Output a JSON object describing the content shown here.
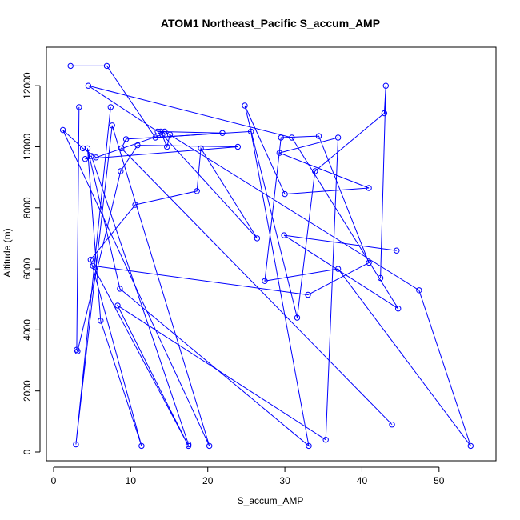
{
  "chart_data": {
    "type": "line",
    "title": "ATOM1 Northeast_Pacific S_accum_AMP",
    "xlabel": "S_accum_AMP",
    "ylabel": "Altitude (m)",
    "xlim": [
      0,
      55
    ],
    "ylim": [
      0,
      13000
    ],
    "xticks": [
      0,
      10,
      20,
      30,
      40,
      50
    ],
    "yticks": [
      0,
      2000,
      4000,
      6000,
      8000,
      10000,
      12000
    ],
    "grid": false,
    "legend": "none",
    "color": "#0000ff",
    "marker": "open-circle",
    "series": [
      {
        "x": [
          2.2,
          6.9,
          13.2,
          21.9,
          13.5,
          4.5,
          30.9,
          44.7,
          29.9,
          44.5
        ],
        "y": [
          12650,
          12650,
          10300,
          10450,
          10500,
          12000,
          10300,
          4700,
          7100,
          6600
        ]
      },
      {
        "x": [
          3.3,
          3.0,
          3.1,
          8.7,
          10.9,
          23.9,
          4.1,
          4.9,
          17.5
        ],
        "y": [
          11300,
          3350,
          3300,
          9200,
          10050,
          10000,
          9600,
          9700,
          250
        ]
      },
      {
        "x": [
          7.4,
          2.9,
          7.6,
          20.2,
          1.2,
          3.8,
          5.5,
          14.1,
          26.4,
          19.1,
          18.6,
          10.6,
          4.8,
          11.4,
          6.1,
          4.4,
          8.6,
          33.1,
          25.6,
          9.4,
          8.8,
          43.9
        ],
        "y": [
          11300,
          250,
          10700,
          200,
          10550,
          9950,
          9650,
          10400,
          7000,
          9950,
          8550,
          8100,
          6300,
          200,
          4300,
          9950,
          5350,
          200,
          10500,
          10250,
          9950,
          900
        ]
      },
      {
        "x": [
          15.1,
          14.7,
          13.9,
          14.4,
          47.4,
          54.1,
          36.9,
          27.4,
          29.5,
          34.4,
          40.9,
          33.0,
          5.1,
          17.5,
          8.3,
          35.3,
          36.9,
          29.3,
          40.9,
          30.0,
          24.8,
          31.6,
          33.9,
          42.9,
          43.1,
          42.4
        ],
        "y": [
          10400,
          10000,
          10500,
          10500,
          5300,
          200,
          6000,
          5600,
          10300,
          10350,
          6200,
          5150,
          6100,
          200,
          4800,
          400,
          10300,
          9800,
          8650,
          8450,
          11350,
          4400,
          9200,
          11100,
          12000,
          5700
        ]
      }
    ]
  }
}
